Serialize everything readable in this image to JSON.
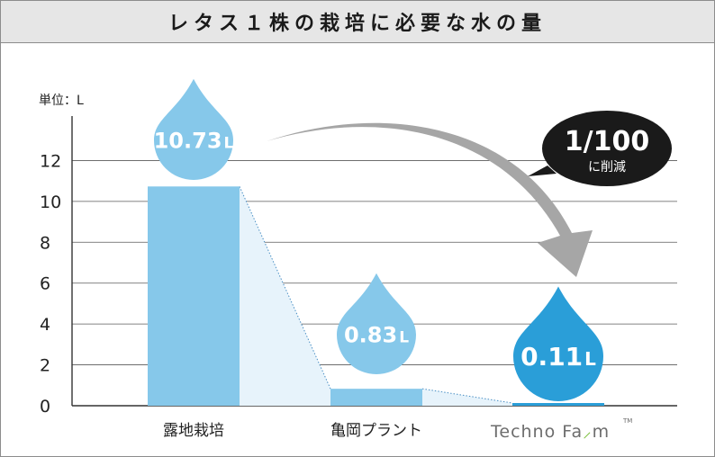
{
  "title": "レタス１株の栽培に必要な水の量",
  "chart_data": {
    "type": "bar",
    "unit_label": "単位：L",
    "categories": [
      "露地栽培",
      "亀岡プラント",
      "TechnoFarm"
    ],
    "values": [
      10.73,
      0.83,
      0.11
    ],
    "value_labels": [
      "10.73",
      "0.83",
      "0.11"
    ],
    "value_unit": "L",
    "ylim": [
      0,
      14
    ],
    "yticks": [
      0,
      2,
      4,
      6,
      8,
      10,
      12
    ],
    "grid": true,
    "annotation": {
      "main": "1/100",
      "sub": "に削減"
    },
    "brand": {
      "text_a": "Techno Fa",
      "text_b": "m",
      "tm": "TM"
    },
    "colors": {
      "bar": "#86c8ea",
      "drop": "#86c8ea",
      "drop_highlight": "#2a9ed8",
      "bar_highlight": "#2a9ed8",
      "shade": "#e7f3fb",
      "arrow": "#a6a6a6",
      "bubble": "#1a1a1a",
      "brand_green": "#7cbf3d"
    }
  }
}
